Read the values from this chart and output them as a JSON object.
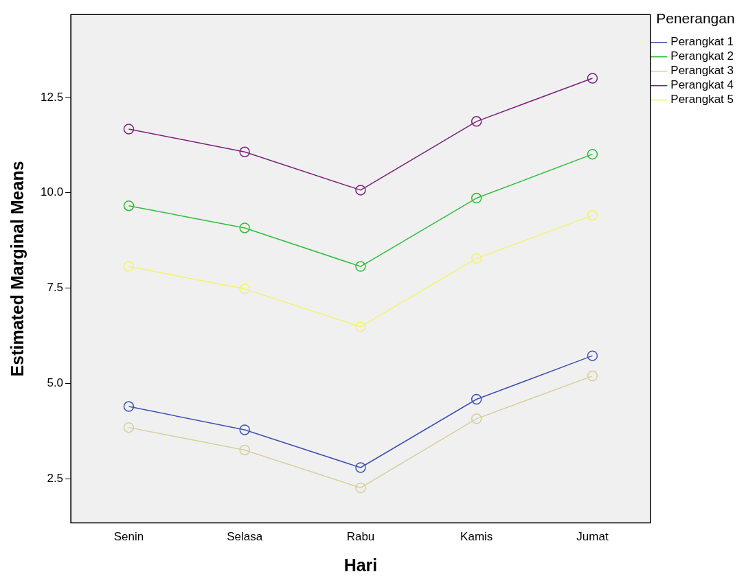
{
  "chart_data": {
    "type": "line",
    "xlabel": "Hari",
    "ylabel": "Estimated Marginal Means",
    "legend_title": "Penerangan",
    "categories": [
      "Senin",
      "Selasa",
      "Rabu",
      "Kamis",
      "Jumat"
    ],
    "series": [
      {
        "name": "Perangkat 1",
        "color": "#3c50b4",
        "values": [
          4.4,
          3.79,
          2.8,
          4.59,
          5.73
        ]
      },
      {
        "name": "Perangkat 2",
        "color": "#2ebd3b",
        "values": [
          9.66,
          9.08,
          8.07,
          9.86,
          11.01
        ]
      },
      {
        "name": "Perangkat 3",
        "color": "#d6cf9c",
        "values": [
          3.85,
          3.26,
          2.27,
          4.08,
          5.2
        ]
      },
      {
        "name": "Perangkat 4",
        "color": "#7b1f7a",
        "values": [
          11.67,
          11.07,
          10.07,
          11.87,
          13.0
        ]
      },
      {
        "name": "Perangkat 5",
        "color": "#f3f36a",
        "values": [
          8.07,
          7.48,
          6.49,
          8.28,
          9.41
        ]
      }
    ],
    "ylim": [
      1.35,
      14.67
    ],
    "yticks": [
      2.5,
      {
        "value": 5,
        "label": "5.0"
      },
      {
        "value": 7.5,
        "label": "7.5"
      },
      {
        "value": 10,
        "label": "10.0"
      },
      12.5
    ],
    "grid": false,
    "legend": "top right",
    "marker": "circle",
    "line_style": "solid"
  }
}
